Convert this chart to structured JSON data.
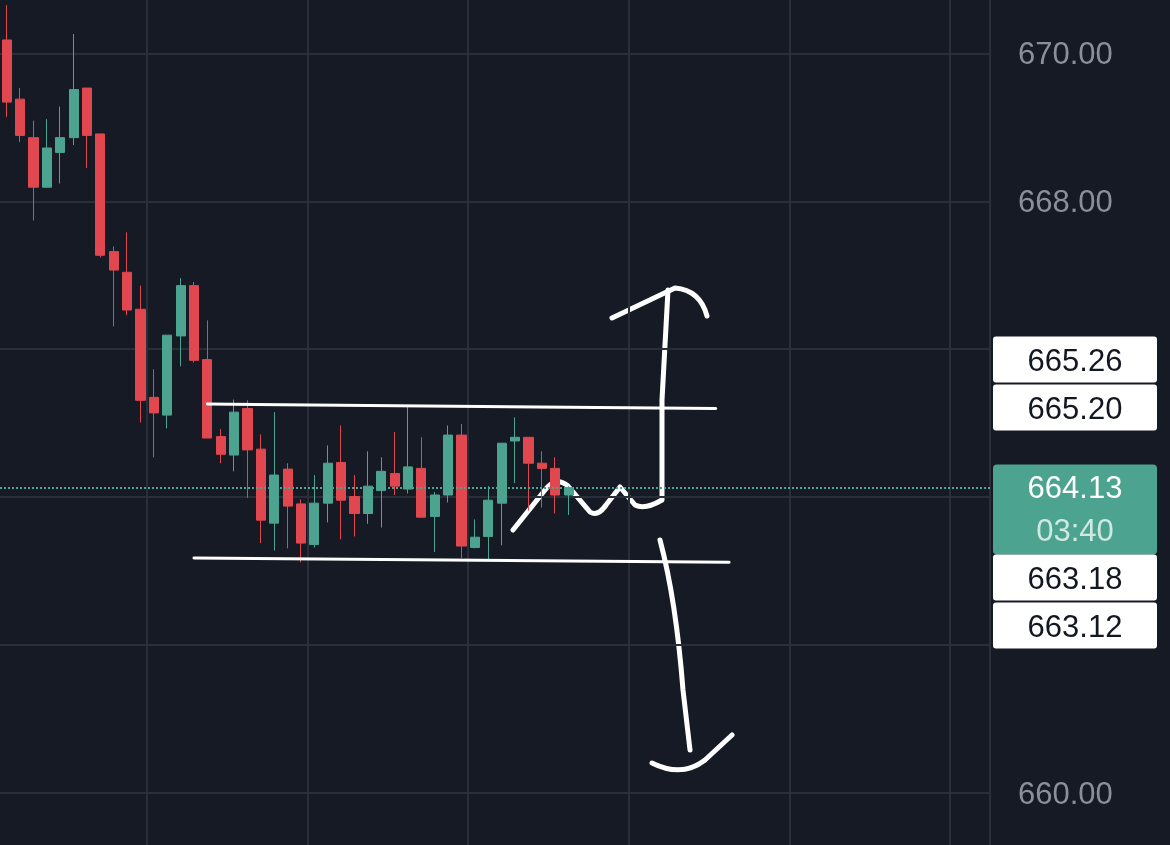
{
  "chart_data": {
    "type": "candlestick",
    "categories": [
      null,
      null,
      null,
      null,
      null,
      null,
      null,
      null,
      null,
      null,
      null,
      null,
      null,
      null,
      null,
      null,
      null,
      null,
      null,
      null,
      null,
      null,
      null,
      null,
      null,
      null,
      null,
      null,
      null,
      null,
      null,
      null,
      null,
      null,
      null,
      null,
      null,
      null,
      null,
      null,
      null,
      null,
      null,
      null,
      null,
      null,
      null,
      null,
      null,
      null,
      null,
      null,
      null,
      null,
      null,
      null,
      null,
      null,
      null,
      null,
      null,
      null,
      null,
      null,
      null,
      null,
      null,
      null,
      null,
      null,
      null,
      null,
      null,
      null
    ],
    "ohlc": [
      [
        670.18,
        670.65,
        669.14,
        669.34
      ],
      [
        669.38,
        669.53,
        668.8,
        668.89
      ],
      [
        668.86,
        669.09,
        667.74,
        668.19
      ],
      [
        668.19,
        669.11,
        668.18,
        668.72
      ],
      [
        668.66,
        669.28,
        668.24,
        668.86
      ],
      [
        668.86,
        670.26,
        668.76,
        669.51
      ],
      [
        669.53,
        669.53,
        668.45,
        668.89
      ],
      [
        668.91,
        668.91,
        667.24,
        667.27
      ],
      [
        667.32,
        667.39,
        666.31,
        667.07
      ],
      [
        667.04,
        667.58,
        666.46,
        666.53
      ],
      [
        666.54,
        666.86,
        665.01,
        665.31
      ],
      [
        665.35,
        665.73,
        664.54,
        665.14
      ],
      [
        665.11,
        666.19,
        664.93,
        666.19
      ],
      [
        666.18,
        666.96,
        665.77,
        666.86
      ],
      [
        666.86,
        666.91,
        665.82,
        665.85
      ],
      [
        665.86,
        666.39,
        664.8,
        664.8
      ],
      [
        664.82,
        664.92,
        664.46,
        664.58
      ],
      [
        664.57,
        665.32,
        664.35,
        665.15
      ],
      [
        665.2,
        665.31,
        663.99,
        664.64
      ],
      [
        664.65,
        664.85,
        663.38,
        663.69
      ],
      [
        663.65,
        665.15,
        663.28,
        664.3
      ],
      [
        664.38,
        664.46,
        663.31,
        663.88
      ],
      [
        663.91,
        663.97,
        663.12,
        663.38
      ],
      [
        663.36,
        664.3,
        663.32,
        663.92
      ],
      [
        663.92,
        664.7,
        663.66,
        664.46
      ],
      [
        664.47,
        664.97,
        663.43,
        663.96
      ],
      [
        664.01,
        664.3,
        663.47,
        663.78
      ],
      [
        663.78,
        664.62,
        663.64,
        664.15
      ],
      [
        664.09,
        664.54,
        663.59,
        664.35
      ],
      [
        664.32,
        664.88,
        664.03,
        664.15
      ],
      [
        664.11,
        665.24,
        664.05,
        664.41
      ],
      [
        664.39,
        664.81,
        663.73,
        663.73
      ],
      [
        663.74,
        664.07,
        663.26,
        664.03
      ],
      [
        664.03,
        664.97,
        663.93,
        664.84
      ],
      [
        664.84,
        664.99,
        663.18,
        663.34
      ],
      [
        663.32,
        663.7,
        663.31,
        663.46
      ],
      [
        663.47,
        664.15,
        663.15,
        663.96
      ],
      [
        663.92,
        664.73,
        663.35,
        664.73
      ],
      [
        664.76,
        665.08,
        664.19,
        664.81
      ],
      [
        664.81,
        664.81,
        663.82,
        664.46
      ],
      [
        664.46,
        664.62,
        663.86,
        664.39
      ],
      [
        664.39,
        664.54,
        663.78,
        664.03
      ],
      [
        664.03,
        664.15,
        663.76,
        664.13
      ],
      null,
      null,
      null,
      null,
      null,
      null,
      null,
      null,
      null,
      null,
      null,
      null,
      null,
      null,
      null,
      null,
      null,
      null,
      null,
      null,
      null,
      null,
      null,
      null,
      null,
      null,
      null,
      null,
      null,
      null,
      null
    ],
    "colors": [
      "#e0474f",
      "#e0474f",
      "#e0474f",
      "#4ca38f",
      "#4ca38f",
      "#4ca38f",
      "#e0474f",
      "#e0474f",
      "#e0474f",
      "#e0474f",
      "#e0474f",
      "#e0474f",
      "#4ca38f",
      "#4ca38f",
      "#e0474f",
      "#e0474f",
      "#e0474f",
      "#4ca38f",
      "#e0474f",
      "#e0474f",
      "#4ca38f",
      "#e0474f",
      "#e0474f",
      "#4ca38f",
      "#4ca38f",
      "#e0474f",
      "#e0474f",
      "#4ca38f",
      "#4ca38f",
      "#e0474f",
      "#4ca38f",
      "#e0474f",
      "#4ca38f",
      "#4ca38f",
      "#e0474f",
      "#4ca38f",
      "#4ca38f",
      "#4ca38f",
      "#4ca38f",
      "#e0474f",
      "#e0474f",
      "#e0474f",
      "#4ca38f",
      null,
      null,
      null,
      null,
      null,
      null,
      null,
      null,
      null,
      null,
      null,
      null,
      null,
      null,
      null,
      null,
      null,
      null,
      null,
      null,
      null,
      null,
      null,
      null,
      null,
      null,
      null,
      null,
      null,
      null,
      null
    ],
    "series": [
      {
        "type": "line",
        "color": "#ffffff",
        "values": [
          null,
          null,
          null,
          null,
          null,
          null,
          null,
          null,
          null,
          null,
          null,
          null,
          null,
          null,
          null,
          665.26,
          null,
          null,
          null,
          null,
          null,
          null,
          null,
          null,
          null,
          null,
          null,
          null,
          null,
          null,
          null,
          null,
          null,
          null,
          null,
          null,
          null,
          null,
          null,
          null,
          null,
          null,
          null,
          null,
          null,
          null,
          null,
          null,
          null,
          null,
          null,
          null,
          null,
          665.2,
          null,
          null,
          null,
          null,
          null,
          null,
          null,
          null,
          null,
          null,
          null,
          null,
          null,
          null,
          null,
          null,
          null,
          null,
          null,
          null
        ]
      },
      {
        "type": "line",
        "color": "#ffffff",
        "values": [
          null,
          null,
          null,
          null,
          null,
          null,
          null,
          null,
          null,
          null,
          null,
          null,
          null,
          null,
          663.18,
          null,
          null,
          null,
          null,
          null,
          null,
          null,
          null,
          null,
          null,
          null,
          null,
          null,
          null,
          null,
          null,
          null,
          null,
          null,
          null,
          null,
          null,
          null,
          null,
          null,
          null,
          null,
          null,
          null,
          null,
          null,
          null,
          null,
          null,
          null,
          null,
          null,
          null,
          null,
          663.12,
          null,
          null,
          null,
          null,
          null,
          null,
          null,
          null,
          null,
          null,
          null,
          null,
          null,
          null,
          null,
          null,
          null,
          null,
          null
        ]
      }
    ],
    "marker": "none",
    "ylim": [
      659.3,
      670.72
    ],
    "yticks": [
      {
        "value": 660,
        "label": "660.00"
      },
      {
        "value": 662,
        "label": null
      },
      {
        "value": 664,
        "label": null
      },
      {
        "value": 666,
        "label": null
      },
      {
        "value": 668,
        "label": "668.00"
      },
      {
        "value": 670,
        "label": "670.00"
      }
    ],
    "grid": true,
    "tick_labels": "y",
    "ref_lines": [
      {
        "axis": "y",
        "value": 664.13,
        "label": "664.13",
        "color": "#4ca38f",
        "line_style": "dotted"
      }
    ],
    "annotations": [
      "665.26",
      "665.20",
      "663.18",
      "663.12",
      "03:40"
    ]
  }
}
